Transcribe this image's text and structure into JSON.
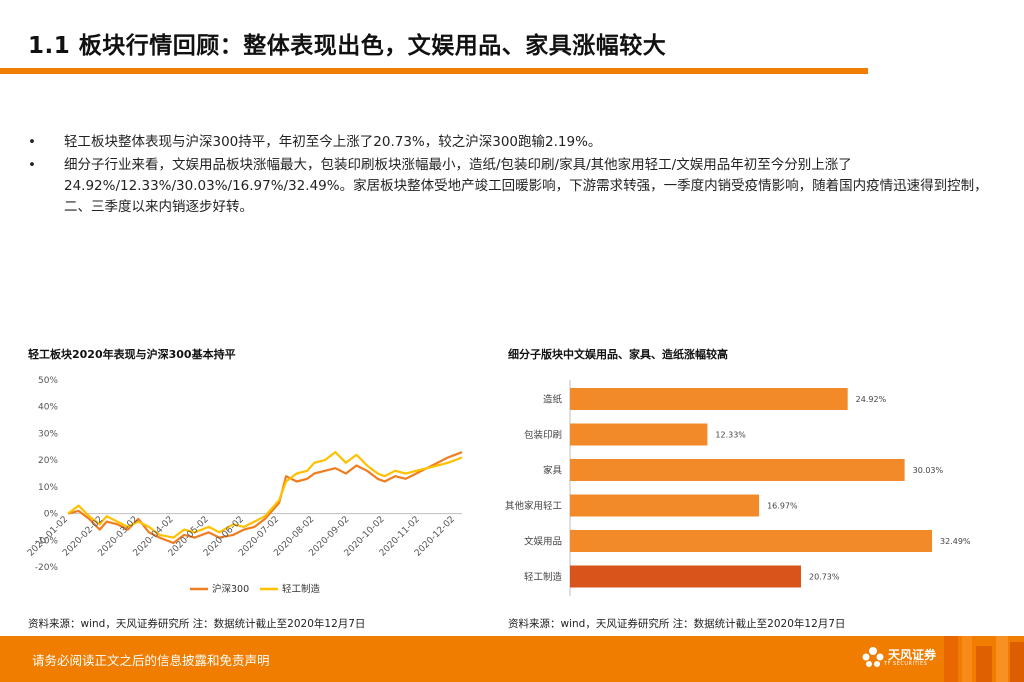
{
  "title": "1.1 板块行情回顾：整体表现出色，文娱用品、家具涨幅较大",
  "bullets": [
    "轻工板块整体表现与沪深300持平，年初至今上涨了20.73%，较之沪深300跑输2.19%。",
    "细分子行业来看，文娱用品板块涨幅最大，包装印刷板块涨幅最小，造纸/包装印刷/家具/其他家用轻工/文娱用品年初至今分别上涨了24.92%/12.33%/30.03%/16.97%/32.49%。家居板块整体受地产竣工回暖影响，下游需求转强，一季度内销受疫情影响，随着国内疫情迅速得到控制，二、三季度以来内销逐步好转。"
  ],
  "bullet_symbol": "•",
  "left_chart_title": "轻工板块2020年表现与沪深300基本持平",
  "right_chart_title": "细分子版块中文娱用品、家具、造纸涨幅较高",
  "source_left": "资料来源：wind，天风证券研究所 注：数据统计截止至2020年12月7日",
  "source_right": "资料来源：wind，天风证券研究所 注：数据统计截止至2020年12月7日",
  "footer_text": "请务必阅读正文之后的信息披露和免责声明",
  "logo": {
    "name": "天风证券",
    "sub": "TF SECURITIES"
  },
  "colors": {
    "accent": "#f07c00",
    "bar": "#f28a2a",
    "bar_highlight": "#d9541a",
    "hs300": "#f07c20",
    "qinggong": "#ffc000"
  },
  "chart_data": [
    {
      "type": "line",
      "title": "轻工板块2020年表现与沪深300基本持平",
      "x_ticks": [
        "2020-01-02",
        "2020-02-02",
        "2020-03-02",
        "2020-04-02",
        "2020-05-02",
        "2020-06-02",
        "2020-07-02",
        "2020-08-02",
        "2020-09-02",
        "2020-10-02",
        "2020-11-02",
        "2020-12-02"
      ],
      "y_ticks": [
        "50%",
        "40%",
        "30%",
        "20%",
        "10%",
        "0%",
        "-10%",
        "-20%"
      ],
      "ylim": [
        -20,
        50
      ],
      "xlim": [
        0,
        11.2
      ],
      "grid": false,
      "legend": "bottom",
      "series": [
        {
          "name": "沪深300",
          "color": "#f07c20",
          "points": [
            [
              0,
              0
            ],
            [
              0.3,
              1
            ],
            [
              0.6,
              -2
            ],
            [
              0.9,
              -6
            ],
            [
              1.1,
              -3
            ],
            [
              1.4,
              -4
            ],
            [
              1.7,
              -6
            ],
            [
              2.0,
              -2
            ],
            [
              2.3,
              -7
            ],
            [
              2.6,
              -9
            ],
            [
              3.0,
              -11
            ],
            [
              3.3,
              -8
            ],
            [
              3.6,
              -9
            ],
            [
              4.0,
              -7
            ],
            [
              4.3,
              -9
            ],
            [
              4.7,
              -8
            ],
            [
              5.0,
              -6
            ],
            [
              5.3,
              -5
            ],
            [
              5.6,
              -2
            ],
            [
              6.0,
              4
            ],
            [
              6.2,
              14
            ],
            [
              6.5,
              12
            ],
            [
              6.8,
              13
            ],
            [
              7.0,
              15
            ],
            [
              7.3,
              16
            ],
            [
              7.6,
              17
            ],
            [
              7.9,
              15
            ],
            [
              8.2,
              18
            ],
            [
              8.5,
              16
            ],
            [
              8.8,
              13
            ],
            [
              9.0,
              12
            ],
            [
              9.3,
              14
            ],
            [
              9.6,
              13
            ],
            [
              9.9,
              15
            ],
            [
              10.2,
              17
            ],
            [
              10.5,
              19
            ],
            [
              10.8,
              21
            ],
            [
              11.0,
              22
            ],
            [
              11.2,
              23
            ]
          ]
        },
        {
          "name": "轻工制造",
          "color": "#ffc000",
          "points": [
            [
              0,
              0
            ],
            [
              0.3,
              3
            ],
            [
              0.6,
              -1
            ],
            [
              0.9,
              -4
            ],
            [
              1.1,
              -1
            ],
            [
              1.4,
              -3
            ],
            [
              1.7,
              -5
            ],
            [
              2.0,
              -3
            ],
            [
              2.3,
              -5
            ],
            [
              2.6,
              -8
            ],
            [
              3.0,
              -9
            ],
            [
              3.3,
              -6
            ],
            [
              3.6,
              -7
            ],
            [
              4.0,
              -5
            ],
            [
              4.3,
              -7
            ],
            [
              4.7,
              -4
            ],
            [
              5.0,
              -5
            ],
            [
              5.3,
              -3
            ],
            [
              5.6,
              -1
            ],
            [
              6.0,
              5
            ],
            [
              6.2,
              12
            ],
            [
              6.5,
              15
            ],
            [
              6.8,
              16
            ],
            [
              7.0,
              19
            ],
            [
              7.3,
              20
            ],
            [
              7.6,
              23
            ],
            [
              7.9,
              19
            ],
            [
              8.2,
              22
            ],
            [
              8.5,
              18
            ],
            [
              8.8,
              15
            ],
            [
              9.0,
              14
            ],
            [
              9.3,
              16
            ],
            [
              9.6,
              15
            ],
            [
              9.9,
              16
            ],
            [
              10.2,
              17
            ],
            [
              10.5,
              18
            ],
            [
              10.8,
              19
            ],
            [
              11.0,
              20
            ],
            [
              11.2,
              21
            ]
          ]
        }
      ]
    },
    {
      "type": "bar",
      "orientation": "horizontal",
      "title": "细分子版块中文娱用品、家具、造纸涨幅较高",
      "categories": [
        "造纸",
        "包装印刷",
        "家具",
        "其他家用轻工",
        "文娱用品",
        "轻工制造"
      ],
      "values": [
        24.92,
        12.33,
        30.03,
        16.97,
        32.49,
        20.73
      ],
      "labels": [
        "24.92%",
        "12.33%",
        "30.03%",
        "16.97%",
        "32.49%",
        "20.73%"
      ],
      "xlim": [
        0,
        35
      ],
      "grid": false
    }
  ]
}
